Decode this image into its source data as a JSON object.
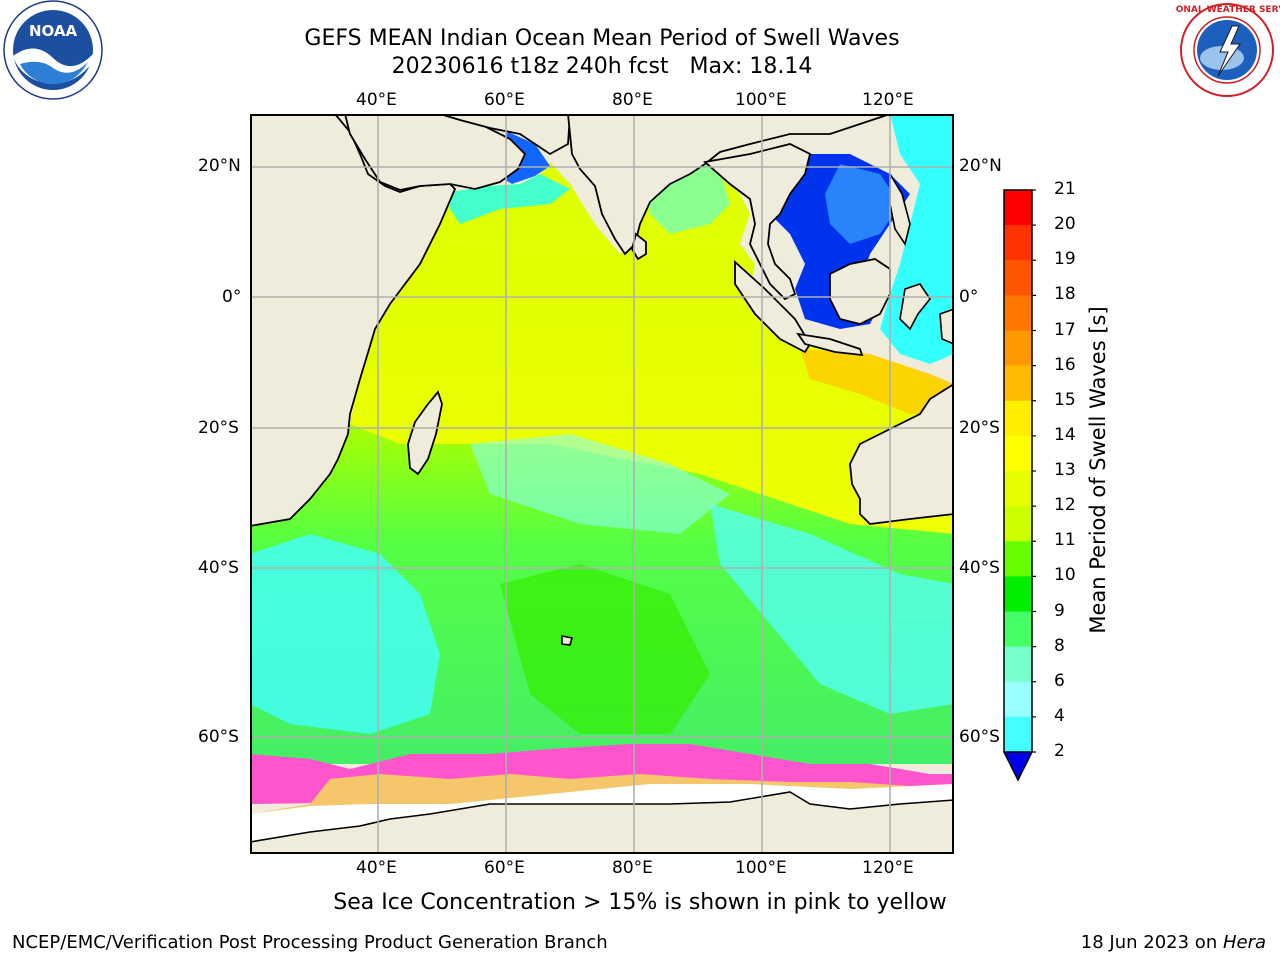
{
  "header": {
    "title_line1": "GEFS MEAN Indian Ocean Mean Period of Swell Waves",
    "title_line2": "20230616 t18z 240h fcst   Max: 18.14"
  },
  "logos": {
    "left": {
      "name": "noaa-logo",
      "text": "NOAA"
    },
    "right": {
      "name": "nws-logo",
      "text": "NATIONAL WEATHER SERVICE"
    }
  },
  "map": {
    "lon_ticks": [
      "40°E",
      "60°E",
      "80°E",
      "100°E",
      "120°E"
    ],
    "lat_ticks": [
      "20°N",
      "0°",
      "20°S",
      "40°S",
      "60°S"
    ],
    "colors": {
      "land": "#efecdb",
      "ice_area": "#ffffff",
      "grid": "#b0b0b0",
      "coast": "#000000"
    }
  },
  "colorbar": {
    "label": "Mean Period of Swell Waves [s]",
    "ticks": [
      "21",
      "20",
      "19",
      "18",
      "17",
      "16",
      "15",
      "14",
      "13",
      "12",
      "11",
      "10",
      "9",
      "8",
      "6",
      "4",
      "2"
    ],
    "colors": [
      "#ff0000",
      "#ff3300",
      "#ff5500",
      "#ff7700",
      "#ff9900",
      "#ffbb00",
      "#ffee00",
      "#ffff00",
      "#e6ff00",
      "#ccff00",
      "#66ff00",
      "#00ee00",
      "#44ff66",
      "#77ffcc",
      "#99ffff",
      "#44ffff",
      "#00ffff",
      "#0099ff",
      "#0000ee"
    ]
  },
  "caption": "Sea Ice Concentration > 15% is shown in pink to yellow",
  "footer": {
    "left": "NCEP/EMC/Verification Post Processing Product Generation Branch",
    "right_prefix": "18 Jun 2023 on ",
    "right_host": "Hera"
  }
}
